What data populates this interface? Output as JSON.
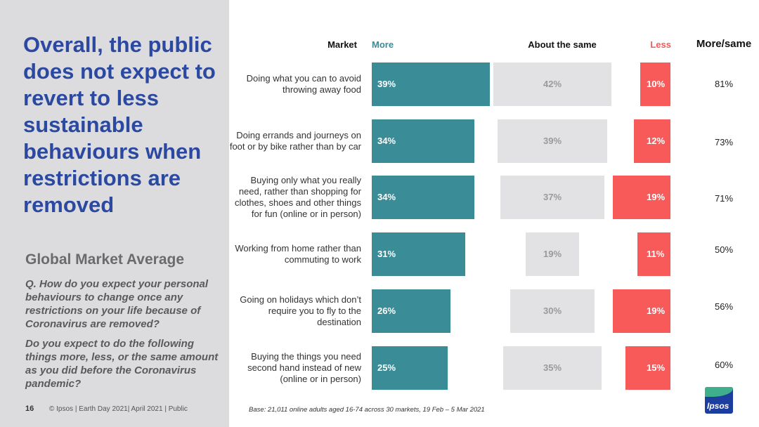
{
  "left": {
    "headline": "Overall, the public does not expect to revert to less sustainable behaviours when restrictions are removed",
    "subheading": "Global Market Average",
    "question1": "Q. How do you expect your personal behaviours to change once any restrictions on your life because of Coronavirus are removed?",
    "question2": "Do you expect to do the following things more, less, or the same amount as you did before the Coronavirus pandemic?",
    "page_number": "16",
    "footer": "© Ipsos | Earth Day 2021| April 2021 | Public"
  },
  "headers": {
    "market": "Market",
    "more": "More",
    "same": "About the same",
    "less": "Less",
    "more_same": "More/same"
  },
  "base_note": "Base: 21,011 online adults aged 16-74 across 30 markets,  19 Feb – 5 Mar 2021",
  "logo_text": "Ipsos",
  "colors": {
    "more": "#3a8c97",
    "same": "#e2e2e4",
    "less": "#f85a5a",
    "headline": "#2c49a1"
  },
  "chart_data": {
    "type": "bar",
    "categories": [
      "Doing what you can to avoid throwing away food",
      "Doing errands and journeys on foot or by bike rather than by car",
      "Buying only what you really need, rather than shopping for clothes, shoes and other things for fun (online or in person)",
      "Working from home rather than commuting to work",
      "Going on holidays which don’t require you to fly to the destination",
      "Buying the things you need second hand instead of new (online or in person)"
    ],
    "series": [
      {
        "name": "More",
        "values": [
          39,
          34,
          34,
          31,
          26,
          25
        ],
        "labels": [
          "39%",
          "34%",
          "34%",
          "31%",
          "26%",
          "25%"
        ]
      },
      {
        "name": "About the same",
        "values": [
          42,
          39,
          37,
          19,
          30,
          35
        ],
        "labels": [
          "42%",
          "39%",
          "37%",
          "19%",
          "30%",
          "35%"
        ]
      },
      {
        "name": "Less",
        "values": [
          10,
          12,
          19,
          11,
          19,
          15
        ],
        "labels": [
          "10%",
          "12%",
          "19%",
          "11%",
          "19%",
          "15%"
        ]
      }
    ],
    "more_same": [
      "81%",
      "73%",
      "71%",
      "50%",
      "56%",
      "60%"
    ]
  }
}
